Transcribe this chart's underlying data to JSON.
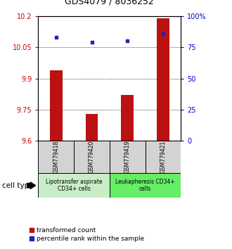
{
  "title": "GDS4079 / 8036252",
  "samples": [
    "GSM779418",
    "GSM779420",
    "GSM779419",
    "GSM779421"
  ],
  "transformed_counts": [
    9.94,
    9.73,
    9.82,
    10.19
  ],
  "percentile_ranks": [
    83,
    79,
    80,
    86
  ],
  "ylim_left": [
    9.6,
    10.2
  ],
  "yticks_left": [
    9.6,
    9.75,
    9.9,
    10.05,
    10.2
  ],
  "yticks_right": [
    0,
    25,
    50,
    75,
    100
  ],
  "bar_color": "#bb1111",
  "dot_color": "#2222bb",
  "bar_width": 0.35,
  "cell_types": [
    {
      "label": "Lipotransfer aspirate\nCD34+ cells",
      "samples_idx": [
        0,
        1
      ],
      "color": "#c8eec8"
    },
    {
      "label": "Leukapheresis CD34+\ncells",
      "samples_idx": [
        2,
        3
      ],
      "color": "#66ee66"
    }
  ],
  "cell_type_label": "cell type",
  "legend_red": "transformed count",
  "legend_blue": "percentile rank within the sample",
  "tick_color_left": "#cc0000",
  "tick_color_right": "#0000cc",
  "ybaseline": 9.6,
  "sample_box_color": "#d3d3d3",
  "title_fontsize": 9,
  "tick_fontsize": 7,
  "sample_fontsize": 5.5,
  "celltype_fontsize": 5.5,
  "legend_fontsize": 6.5
}
